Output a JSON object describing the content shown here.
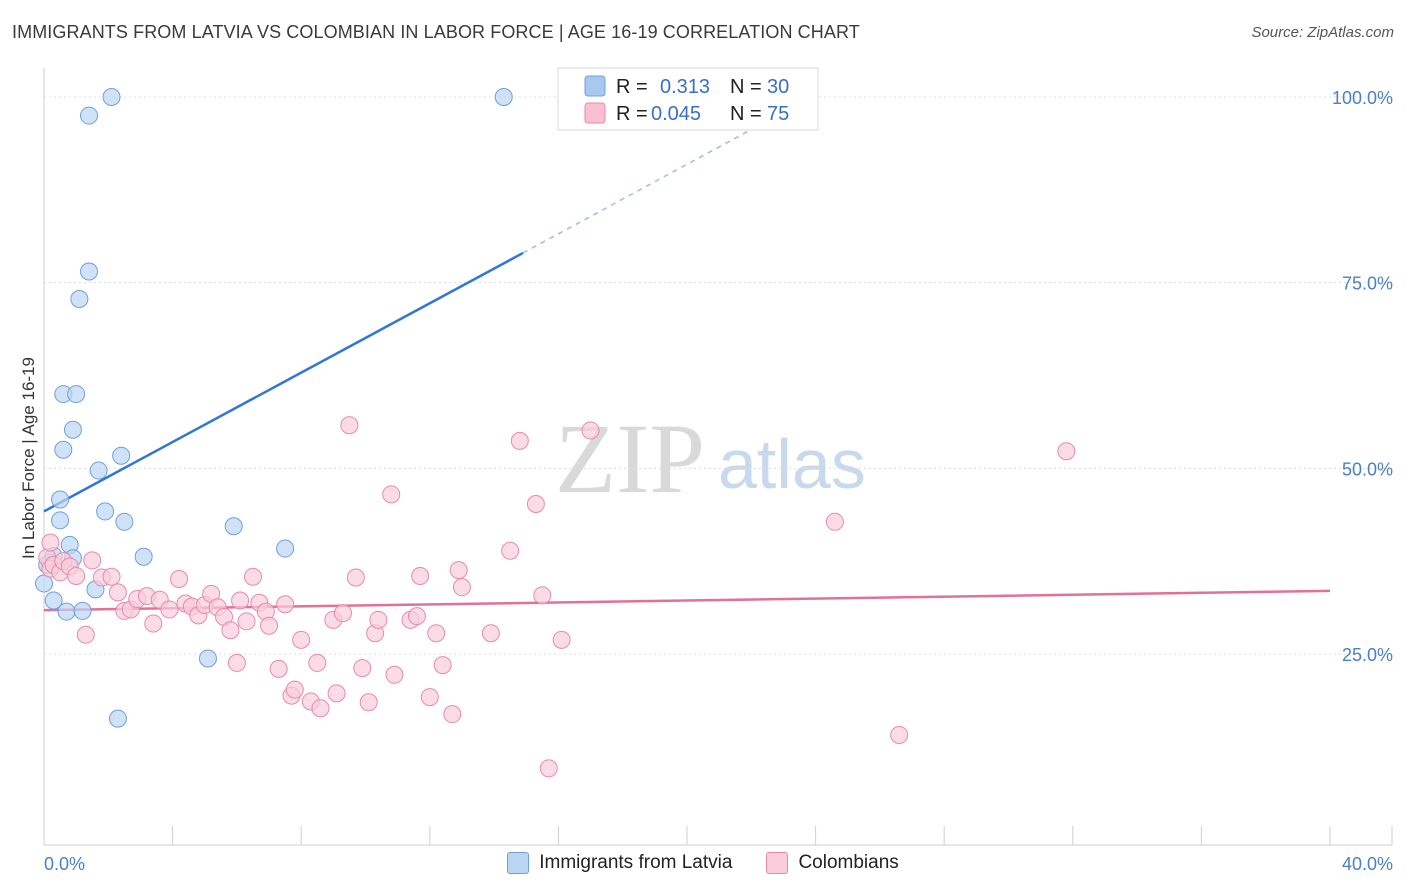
{
  "title": "IMMIGRANTS FROM LATVIA VS COLOMBIAN IN LABOR FORCE | AGE 16-19 CORRELATION CHART",
  "source": "Source: ZipAtlas.com",
  "watermark": {
    "zip": "ZIP",
    "atlas": "atlas"
  },
  "legend": {
    "rows": [
      {
        "r_label": "R =",
        "r_value": "0.313",
        "n_label": "N =",
        "n_value": "30",
        "color": "#a8c8f0",
        "stroke": "#6f9fdc"
      },
      {
        "r_label": "R =",
        "r_value": "0.045",
        "n_label": "N =",
        "n_value": "75",
        "color": "#f8c0d2",
        "stroke": "#e88aa8"
      }
    ]
  },
  "bottom_legend": {
    "items": [
      {
        "label": "Immigrants from Latvia",
        "color": "#bcd5f3",
        "stroke": "#6f9fdc"
      },
      {
        "label": "Colombians",
        "color": "#f9cddb",
        "stroke": "#e88aa8"
      }
    ]
  },
  "chart_data": {
    "type": "scatter",
    "title": "IMMIGRANTS FROM LATVIA VS COLOMBIAN IN LABOR FORCE | AGE 16-19 CORRELATION CHART",
    "xlabel": "",
    "ylabel": "In Labor Force | Age 16-19",
    "xlim": [
      0,
      40
    ],
    "ylim": [
      0,
      105
    ],
    "x_tick_labels": [
      {
        "value": 0,
        "label": "0.0%"
      },
      {
        "value": 40,
        "label": "40.0%"
      }
    ],
    "y_tick_labels": [
      {
        "value": 25,
        "label": "25.0%"
      },
      {
        "value": 50,
        "label": "50.0%"
      },
      {
        "value": 75,
        "label": "75.0%"
      },
      {
        "value": 100,
        "label": "100.0%"
      }
    ],
    "grid": true,
    "series": [
      {
        "name": "Immigrants from Latvia",
        "color": "#bcd5f3",
        "stroke": "#6f9fdc",
        "trend": {
          "x0": 0,
          "y0": 44.2,
          "x1": 14.9,
          "y1": 79.0,
          "dash_x1": 24.0,
          "dash_y1": 100.3,
          "color": "#2f77d0"
        },
        "points": [
          [
            2.1,
            100.0
          ],
          [
            1.4,
            97.5
          ],
          [
            14.3,
            100.0
          ],
          [
            1.4,
            76.5
          ],
          [
            1.1,
            72.8
          ],
          [
            0.6,
            60.0
          ],
          [
            1.0,
            60.0
          ],
          [
            0.9,
            55.2
          ],
          [
            0.6,
            52.5
          ],
          [
            2.4,
            51.7
          ],
          [
            1.7,
            49.7
          ],
          [
            0.5,
            45.8
          ],
          [
            1.9,
            44.2
          ],
          [
            2.5,
            42.8
          ],
          [
            0.5,
            43.0
          ],
          [
            5.9,
            42.2
          ],
          [
            0.8,
            39.7
          ],
          [
            7.5,
            39.2
          ],
          [
            3.1,
            38.1
          ],
          [
            0.2,
            37.3
          ],
          [
            0.1,
            37.0
          ],
          [
            0.9,
            37.9
          ],
          [
            0.3,
            38.2
          ],
          [
            1.6,
            33.7
          ],
          [
            0.3,
            32.2
          ],
          [
            0.7,
            30.7
          ],
          [
            1.2,
            30.8
          ],
          [
            5.1,
            24.4
          ],
          [
            2.3,
            16.3
          ],
          [
            0.0,
            34.5
          ]
        ]
      },
      {
        "name": "Colombians",
        "color": "#f9cddb",
        "stroke": "#e88aa8",
        "trend": {
          "x0": 0,
          "y0": 30.9,
          "x1": 40,
          "y1": 33.5,
          "color": "#e4709a"
        },
        "points": [
          [
            0.1,
            38.0
          ],
          [
            0.2,
            36.5
          ],
          [
            0.3,
            37.0
          ],
          [
            0.5,
            36.0
          ],
          [
            0.6,
            37.5
          ],
          [
            0.8,
            36.8
          ],
          [
            1.0,
            35.5
          ],
          [
            1.5,
            37.6
          ],
          [
            1.8,
            35.3
          ],
          [
            2.1,
            35.4
          ],
          [
            2.3,
            33.3
          ],
          [
            2.5,
            30.8
          ],
          [
            2.7,
            31.0
          ],
          [
            2.9,
            32.4
          ],
          [
            3.2,
            32.8
          ],
          [
            3.4,
            29.1
          ],
          [
            3.6,
            32.3
          ],
          [
            3.9,
            31.0
          ],
          [
            4.2,
            35.1
          ],
          [
            4.4,
            31.8
          ],
          [
            4.6,
            31.4
          ],
          [
            4.8,
            30.2
          ],
          [
            5.0,
            31.6
          ],
          [
            5.2,
            33.1
          ],
          [
            5.4,
            31.3
          ],
          [
            5.6,
            30.0
          ],
          [
            5.8,
            28.2
          ],
          [
            6.0,
            23.8
          ],
          [
            6.1,
            32.2
          ],
          [
            6.3,
            29.4
          ],
          [
            6.5,
            35.4
          ],
          [
            6.7,
            31.9
          ],
          [
            6.9,
            30.7
          ],
          [
            7.0,
            28.8
          ],
          [
            7.3,
            23.0
          ],
          [
            7.5,
            31.7
          ],
          [
            7.7,
            19.4
          ],
          [
            7.8,
            20.2
          ],
          [
            8.0,
            26.9
          ],
          [
            8.3,
            18.6
          ],
          [
            8.5,
            23.8
          ],
          [
            8.6,
            17.7
          ],
          [
            9.0,
            29.6
          ],
          [
            9.1,
            19.7
          ],
          [
            9.3,
            30.5
          ],
          [
            9.5,
            55.8
          ],
          [
            9.7,
            35.3
          ],
          [
            9.9,
            23.1
          ],
          [
            10.1,
            18.5
          ],
          [
            10.3,
            27.8
          ],
          [
            10.4,
            29.6
          ],
          [
            10.8,
            46.5
          ],
          [
            10.9,
            22.2
          ],
          [
            11.4,
            29.6
          ],
          [
            11.6,
            30.1
          ],
          [
            11.7,
            35.5
          ],
          [
            12.0,
            19.2
          ],
          [
            12.2,
            27.8
          ],
          [
            12.4,
            23.5
          ],
          [
            12.7,
            16.9
          ],
          [
            12.9,
            36.3
          ],
          [
            13.0,
            34.0
          ],
          [
            13.9,
            27.8
          ],
          [
            14.5,
            38.9
          ],
          [
            14.8,
            53.7
          ],
          [
            15.3,
            45.2
          ],
          [
            15.5,
            32.9
          ],
          [
            15.7,
            9.6
          ],
          [
            16.1,
            26.9
          ],
          [
            17.0,
            55.1
          ],
          [
            24.6,
            42.8
          ],
          [
            26.6,
            14.1
          ],
          [
            31.8,
            52.3
          ],
          [
            0.2,
            40.0
          ],
          [
            1.3,
            27.6
          ]
        ]
      }
    ]
  }
}
